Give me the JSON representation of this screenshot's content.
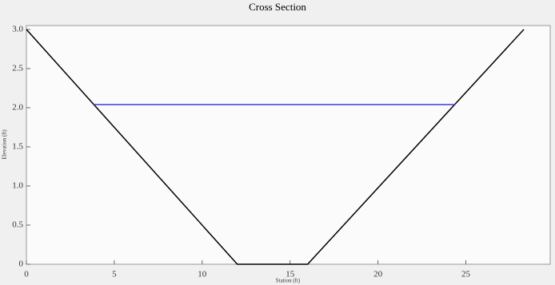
{
  "chart_data": {
    "type": "line",
    "title": "Cross Section",
    "x_label": "Station (ft)",
    "y_label": "Elevation (ft)",
    "series": [
      {
        "color": "#000000",
        "x": [
          0,
          12,
          16,
          28.3
        ],
        "values": [
          3.0,
          0,
          0,
          3.0
        ]
      },
      {
        "color": "#3a3adf",
        "x": [
          3.84,
          24.4
        ],
        "values": [
          2.04,
          2.04
        ]
      }
    ],
    "xlim": [
      0,
      29.8
    ],
    "xticks": [
      0,
      5,
      10,
      15,
      20,
      25
    ],
    "ylim": [
      0,
      3.05
    ],
    "yticks": [
      0,
      0.5,
      {
        "value": 1,
        "label": "1.0"
      },
      1.5,
      {
        "value": 2,
        "label": "2.0"
      },
      2.5,
      {
        "value": 3,
        "label": "3.0"
      }
    ]
  }
}
